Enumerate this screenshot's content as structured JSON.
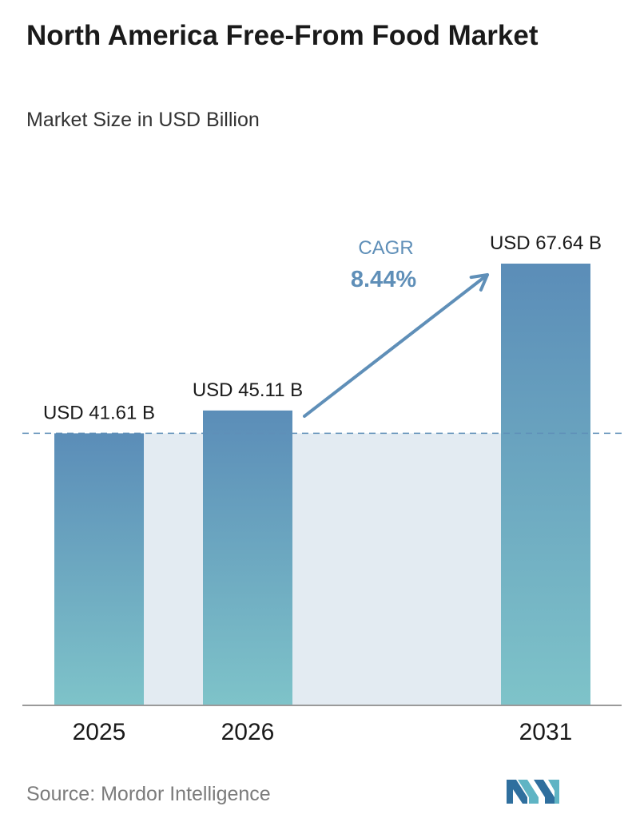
{
  "header": {
    "title": "North America Free-From Food Market",
    "subtitle": "Market Size in USD Billion"
  },
  "chart_data": {
    "type": "bar",
    "categories": [
      "2025",
      "2026",
      "2031"
    ],
    "values": [
      41.61,
      45.11,
      67.64
    ],
    "value_labels": [
      "USD 41.61 B",
      "USD 45.11 B",
      "USD 67.64 B"
    ],
    "title": "North America Free-From Food Market",
    "subtitle": "Market Size in USD Billion",
    "xlabel": "",
    "ylabel": "",
    "grid": false,
    "annotation": {
      "label": "CAGR",
      "value": "8.44%"
    }
  },
  "colors": {
    "bar_top": "#5b8db8",
    "bar_bottom": "#7ec3c9",
    "band": "#e3ebf2",
    "arrow": "#5f8fb8",
    "dashed_line": "#5f8fb8",
    "axis": "#9a9a9a"
  },
  "footer": {
    "source": "Source: Mordor Intelligence",
    "logo": "mordor-intelligence-logo"
  }
}
